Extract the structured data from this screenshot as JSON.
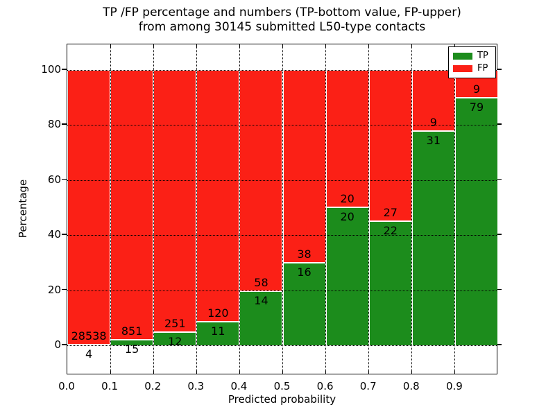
{
  "title": {
    "line1": "TP /FP percentage and numbers (TP-bottom value, FP-upper)",
    "line2": "from among 30145 submitted L50-type contacts"
  },
  "axes": {
    "xlabel": "Predicted probability",
    "ylabel": "Percentage",
    "x_tick_labels": [
      "0.0",
      "0.1",
      "0.2",
      "0.3",
      "0.4",
      "0.5",
      "0.6",
      "0.7",
      "0.8",
      "0.9"
    ],
    "y_tick_labels": [
      "0",
      "20",
      "40",
      "60",
      "80",
      "100"
    ],
    "y_tick_values": [
      0,
      20,
      40,
      60,
      80,
      100
    ]
  },
  "legend": {
    "entries": [
      {
        "label": "TP",
        "color_key": "tp"
      },
      {
        "label": "FP",
        "color_key": "fp"
      }
    ]
  },
  "colors": {
    "tp": "#1c8c1c",
    "fp": "#fb2016",
    "grid": "#000000",
    "background": "#ffffff"
  },
  "chart_data": {
    "type": "bar",
    "stacked": true,
    "normalized_to_percent": true,
    "title": "TP /FP percentage and numbers (TP-bottom value, FP-upper) from among 30145 submitted L50-type contacts",
    "xlabel": "Predicted probability",
    "ylabel": "Percentage",
    "total_contacts": 30145,
    "bin_edges": [
      0.0,
      0.1,
      0.2,
      0.3,
      0.4,
      0.5,
      0.6,
      0.7,
      0.8,
      0.9,
      1.0
    ],
    "categories": [
      "0.0-0.1",
      "0.1-0.2",
      "0.2-0.3",
      "0.3-0.4",
      "0.4-0.5",
      "0.5-0.6",
      "0.6-0.7",
      "0.7-0.8",
      "0.8-0.9",
      "0.9-1.0"
    ],
    "series": [
      {
        "name": "TP",
        "position": "bottom",
        "values": [
          4,
          15,
          12,
          11,
          14,
          16,
          20,
          22,
          31,
          79
        ]
      },
      {
        "name": "FP",
        "position": "upper",
        "values": [
          28538,
          851,
          251,
          120,
          58,
          38,
          20,
          27,
          9,
          9
        ]
      }
    ],
    "tp_percent_per_bin": [
      0.01,
      1.73,
      4.56,
      8.4,
      19.44,
      29.63,
      50.0,
      44.9,
      77.5,
      89.77
    ],
    "xlim": [
      0.0,
      1.0
    ],
    "ylim": [
      -11,
      109
    ],
    "grid": "dotted",
    "legend_position": "upper right"
  }
}
